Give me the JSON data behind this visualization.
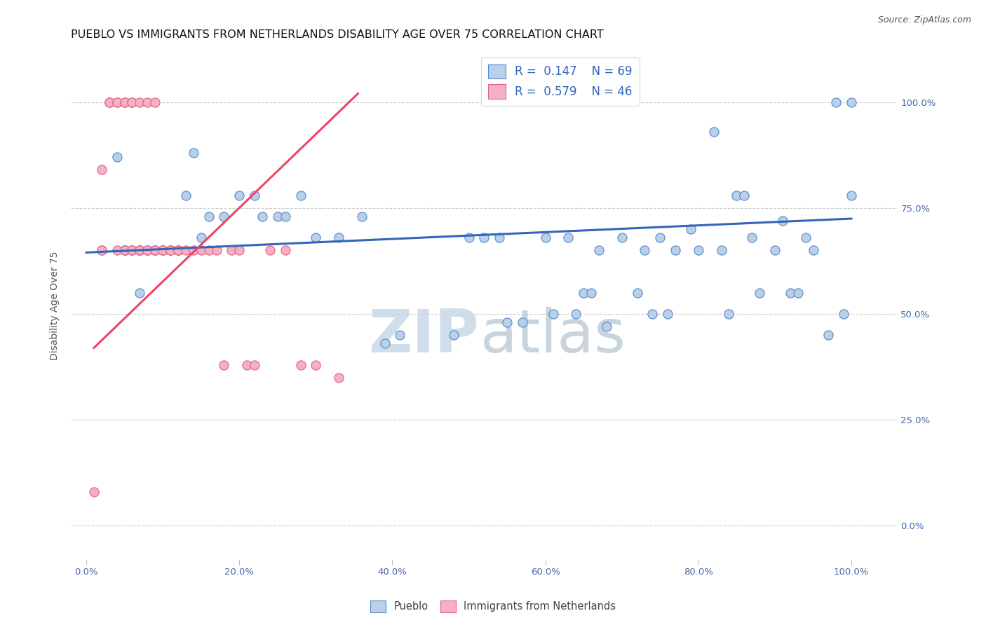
{
  "title": "PUEBLO VS IMMIGRANTS FROM NETHERLANDS DISABILITY AGE OVER 75 CORRELATION CHART",
  "source": "Source: ZipAtlas.com",
  "ylabel": "Disability Age Over 75",
  "x_tick_labels": [
    "0.0%",
    "20.0%",
    "40.0%",
    "60.0%",
    "80.0%",
    "100.0%"
  ],
  "y_tick_labels": [
    "0.0%",
    "25.0%",
    "50.0%",
    "75.0%",
    "100.0%"
  ],
  "x_ticks": [
    0.0,
    0.2,
    0.4,
    0.6,
    0.8,
    1.0
  ],
  "y_ticks": [
    0.0,
    0.25,
    0.5,
    0.75,
    1.0
  ],
  "blue_scatter_x": [
    0.02,
    0.04,
    0.05,
    0.06,
    0.07,
    0.08,
    0.09,
    0.1,
    0.11,
    0.12,
    0.13,
    0.14,
    0.15,
    0.16,
    0.18,
    0.2,
    0.22,
    0.23,
    0.25,
    0.26,
    0.28,
    0.3,
    0.33,
    0.36,
    0.52,
    0.54,
    0.6,
    0.63,
    0.65,
    0.67,
    0.68,
    0.7,
    0.72,
    0.73,
    0.75,
    0.77,
    0.8,
    0.82,
    0.83,
    0.85,
    0.86,
    0.88,
    0.9,
    0.92,
    0.93,
    0.95,
    0.97,
    0.98,
    1.0,
    1.0,
    0.39,
    0.41,
    0.55,
    0.57,
    0.5,
    0.48,
    0.79,
    0.61,
    0.64,
    0.66,
    0.74,
    0.76,
    0.84,
    0.87,
    0.91,
    0.94,
    0.99,
    0.05,
    0.07
  ],
  "blue_scatter_y": [
    0.65,
    0.87,
    0.65,
    0.65,
    0.65,
    0.65,
    0.65,
    0.65,
    0.65,
    0.65,
    0.78,
    0.88,
    0.68,
    0.73,
    0.73,
    0.78,
    0.78,
    0.73,
    0.73,
    0.73,
    0.78,
    0.68,
    0.68,
    0.73,
    0.68,
    0.68,
    0.68,
    0.68,
    0.55,
    0.65,
    0.47,
    0.68,
    0.55,
    0.65,
    0.68,
    0.65,
    0.65,
    0.93,
    0.65,
    0.78,
    0.78,
    0.55,
    0.65,
    0.55,
    0.55,
    0.65,
    0.45,
    1.0,
    0.78,
    1.0,
    0.43,
    0.45,
    0.48,
    0.48,
    0.68,
    0.45,
    0.7,
    0.5,
    0.5,
    0.55,
    0.5,
    0.5,
    0.5,
    0.68,
    0.72,
    0.68,
    0.5,
    0.65,
    0.55
  ],
  "pink_scatter_x": [
    0.01,
    0.02,
    0.02,
    0.03,
    0.03,
    0.04,
    0.04,
    0.04,
    0.05,
    0.05,
    0.05,
    0.06,
    0.06,
    0.06,
    0.06,
    0.07,
    0.07,
    0.07,
    0.07,
    0.08,
    0.08,
    0.08,
    0.09,
    0.09,
    0.09,
    0.1,
    0.1,
    0.11,
    0.11,
    0.12,
    0.12,
    0.13,
    0.14,
    0.15,
    0.16,
    0.17,
    0.18,
    0.19,
    0.2,
    0.21,
    0.22,
    0.24,
    0.26,
    0.28,
    0.3,
    0.33
  ],
  "pink_scatter_y": [
    0.08,
    0.84,
    0.65,
    1.0,
    1.0,
    1.0,
    1.0,
    0.65,
    1.0,
    1.0,
    0.65,
    1.0,
    1.0,
    0.65,
    0.65,
    1.0,
    0.65,
    0.65,
    0.65,
    1.0,
    0.65,
    0.65,
    1.0,
    0.65,
    0.65,
    0.65,
    0.65,
    0.65,
    0.65,
    0.65,
    0.65,
    0.65,
    0.65,
    0.65,
    0.65,
    0.65,
    0.38,
    0.65,
    0.65,
    0.38,
    0.38,
    0.65,
    0.65,
    0.38,
    0.38,
    0.35
  ],
  "blue_line_x": [
    0.0,
    1.0
  ],
  "blue_line_y": [
    0.645,
    0.725
  ],
  "pink_line_x": [
    0.01,
    0.355
  ],
  "pink_line_y": [
    0.42,
    1.02
  ],
  "watermark_zip": "ZIP",
  "watermark_atlas": "atlas",
  "background_color": "#ffffff",
  "scatter_size": 90,
  "blue_fill": "#b8d0e8",
  "pink_fill": "#f4b0c4",
  "blue_edge": "#5588cc",
  "pink_edge": "#e06080",
  "blue_line_color": "#3366bb",
  "pink_line_color": "#ee4466",
  "title_fontsize": 11.5,
  "axis_label_fontsize": 10,
  "tick_fontsize": 9.5,
  "legend_fontsize": 12,
  "source_fontsize": 9
}
